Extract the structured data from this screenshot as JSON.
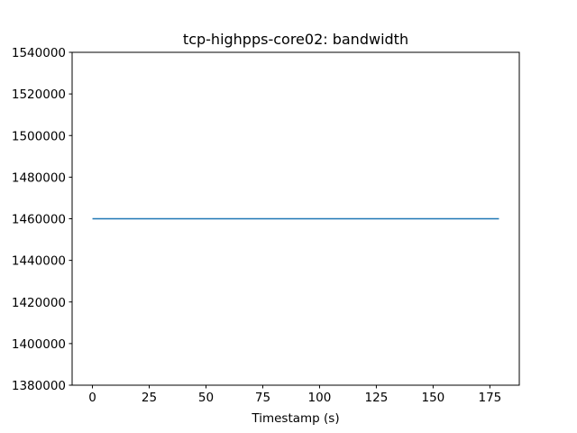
{
  "chart_data": {
    "type": "line",
    "title": "tcp-highpps-core02: bandwidth",
    "xlabel": "Timestamp (s)",
    "ylabel": "",
    "xlim": [
      -8.95,
      187.95
    ],
    "ylim": [
      1380000,
      1540000
    ],
    "x_ticks": [
      0,
      25,
      50,
      75,
      100,
      125,
      150,
      175
    ],
    "y_ticks": [
      1380000,
      1400000,
      1420000,
      1440000,
      1460000,
      1480000,
      1500000,
      1520000,
      1540000
    ],
    "grid": false,
    "series": [
      {
        "color": "#1f77b4",
        "x": [
          0,
          179
        ],
        "y": [
          1460000,
          1460000
        ]
      }
    ]
  }
}
